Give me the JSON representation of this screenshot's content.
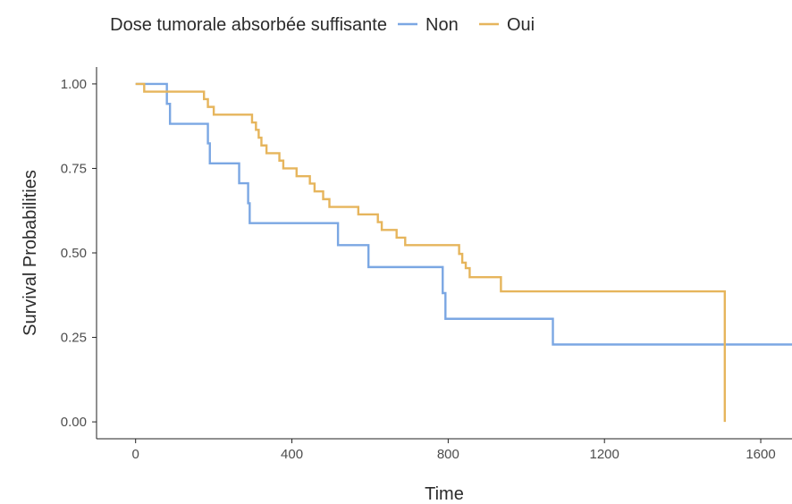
{
  "chart_data": {
    "type": "line",
    "step": true,
    "title": "",
    "xlabel": "Time",
    "ylabel": "Survival Probabilities",
    "xlim": [
      -100,
      1680
    ],
    "ylim": [
      -0.05,
      1.05
    ],
    "x_ticks": [
      0,
      400,
      800,
      1200,
      1600
    ],
    "x_tick_labels": [
      "0",
      "400",
      "800",
      "1200",
      "1600"
    ],
    "y_ticks": [
      0,
      0.25,
      0.5,
      0.75,
      1.0
    ],
    "y_tick_labels": [
      "0.00",
      "0.25",
      "0.50",
      "0.75",
      "1.00"
    ],
    "grid": false,
    "legend": {
      "title": "Dose tumorale absorbée suffisante",
      "position": "top",
      "entries": [
        "Non",
        "Oui"
      ]
    },
    "series": [
      {
        "name": "Non",
        "color": "#7BA7E3",
        "points": [
          [
            0,
            1.0
          ],
          [
            80,
            1.0
          ],
          [
            80,
            0.941
          ],
          [
            88,
            0.941
          ],
          [
            88,
            0.882
          ],
          [
            185,
            0.882
          ],
          [
            185,
            0.824
          ],
          [
            190,
            0.824
          ],
          [
            190,
            0.765
          ],
          [
            265,
            0.765
          ],
          [
            265,
            0.706
          ],
          [
            288,
            0.706
          ],
          [
            288,
            0.647
          ],
          [
            292,
            0.647
          ],
          [
            292,
            0.588
          ],
          [
            518,
            0.588
          ],
          [
            518,
            0.523
          ],
          [
            596,
            0.523
          ],
          [
            596,
            0.458
          ],
          [
            786,
            0.458
          ],
          [
            786,
            0.381
          ],
          [
            793,
            0.381
          ],
          [
            793,
            0.305
          ],
          [
            1068,
            0.305
          ],
          [
            1068,
            0.229
          ],
          [
            1680,
            0.229
          ]
        ]
      },
      {
        "name": "Oui",
        "color": "#E6B55C",
        "points": [
          [
            0,
            1.0
          ],
          [
            22,
            1.0
          ],
          [
            22,
            0.977
          ],
          [
            175,
            0.977
          ],
          [
            175,
            0.955
          ],
          [
            185,
            0.955
          ],
          [
            185,
            0.932
          ],
          [
            200,
            0.932
          ],
          [
            200,
            0.909
          ],
          [
            298,
            0.909
          ],
          [
            298,
            0.886
          ],
          [
            308,
            0.886
          ],
          [
            308,
            0.864
          ],
          [
            315,
            0.864
          ],
          [
            315,
            0.841
          ],
          [
            322,
            0.841
          ],
          [
            322,
            0.818
          ],
          [
            335,
            0.818
          ],
          [
            335,
            0.795
          ],
          [
            368,
            0.795
          ],
          [
            368,
            0.773
          ],
          [
            378,
            0.773
          ],
          [
            378,
            0.75
          ],
          [
            412,
            0.75
          ],
          [
            412,
            0.727
          ],
          [
            446,
            0.727
          ],
          [
            446,
            0.705
          ],
          [
            458,
            0.705
          ],
          [
            458,
            0.682
          ],
          [
            480,
            0.682
          ],
          [
            480,
            0.659
          ],
          [
            496,
            0.659
          ],
          [
            496,
            0.636
          ],
          [
            570,
            0.636
          ],
          [
            570,
            0.614
          ],
          [
            620,
            0.614
          ],
          [
            620,
            0.591
          ],
          [
            630,
            0.591
          ],
          [
            630,
            0.568
          ],
          [
            668,
            0.568
          ],
          [
            668,
            0.545
          ],
          [
            690,
            0.545
          ],
          [
            690,
            0.523
          ],
          [
            828,
            0.523
          ],
          [
            828,
            0.497
          ],
          [
            836,
            0.497
          ],
          [
            836,
            0.471
          ],
          [
            845,
            0.471
          ],
          [
            845,
            0.455
          ],
          [
            855,
            0.455
          ],
          [
            855,
            0.428
          ],
          [
            935,
            0.428
          ],
          [
            935,
            0.386
          ],
          [
            1508,
            0.386
          ],
          [
            1508,
            0.0
          ]
        ]
      }
    ]
  }
}
